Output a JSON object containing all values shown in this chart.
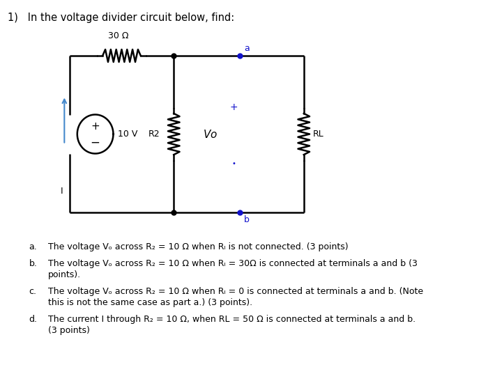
{
  "title": "1)   In the voltage divider circuit below, find:",
  "background_color": "#ffffff",
  "R1_label": "30 Ω",
  "R2_label": "R2",
  "RL_label": "RL",
  "Vo_label": "Vo",
  "VS_label": "10 V",
  "a_label": "a",
  "b_label": "b",
  "I_label": "I",
  "questions": [
    [
      "a.",
      "The voltage Vₒ across R₂ = 10 Ω when Rₗ is not connected. (3 points)"
    ],
    [
      "b.",
      "The voltage Vₒ across R₂ = 10 Ω when Rₗ = 30Ω is connected at terminals a and b (3",
      "points)."
    ],
    [
      "c.",
      "The voltage Vₒ across R₂ = 10 Ω when Rₗ = 0 is connected at terminals a and b. (Note",
      "this is not the same case as part a.) (3 points)."
    ],
    [
      "d.",
      "The current I through R₂ = 10 Ω, when RL = 50 Ω is connected at terminals a and b.",
      "(3 points)"
    ]
  ]
}
